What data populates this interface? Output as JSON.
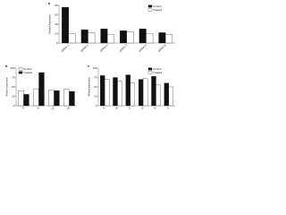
{
  "chart_data": [
    {
      "type": "bar",
      "panel": "a",
      "ylabel": "Relative expression",
      "categories": [
        "siRNA-1",
        "siRNA-2",
        "siRNA-3",
        "siRNA-4",
        "siRNA-5",
        "siRNA-6"
      ],
      "series": [
        {
          "name": "Control",
          "color": "#111111",
          "values": [
            76,
            28,
            30,
            26,
            30,
            22
          ]
        },
        {
          "name": "Treated",
          "color": "#ffffff",
          "values": [
            20,
            22,
            18,
            24,
            20,
            18
          ]
        }
      ],
      "ylim": [
        0,
        80
      ],
      "yticks": [
        0,
        20,
        40,
        60,
        80
      ],
      "legend": "top-right"
    },
    {
      "type": "bar",
      "panel": "b",
      "ylabel": "Relative expression",
      "categories": [
        "0",
        "6",
        "12",
        "24"
      ],
      "series": [
        {
          "name": "Control",
          "color": "#ffffff",
          "values": [
            40,
            45,
            42,
            44
          ]
        },
        {
          "name": "Treated",
          "color": "#111111",
          "values": [
            30,
            88,
            40,
            38
          ]
        }
      ],
      "ylim": [
        0,
        100
      ],
      "yticks": [
        0,
        25,
        50,
        75,
        100
      ],
      "legend": "top-left"
    },
    {
      "type": "bar",
      "panel": "c",
      "ylabel": "Relative expression",
      "categories": [
        "A",
        "B",
        "C",
        "D",
        "E",
        "F"
      ],
      "series": [
        {
          "name": "Control",
          "color": "#111111",
          "values": [
            80,
            75,
            82,
            70,
            78,
            60
          ]
        },
        {
          "name": "Treated",
          "color": "#ffffff",
          "values": [
            70,
            65,
            60,
            72,
            55,
            50
          ]
        }
      ],
      "ylim": [
        0,
        100
      ],
      "yticks": [
        0,
        25,
        50,
        75,
        100
      ],
      "legend": "top-right"
    }
  ]
}
